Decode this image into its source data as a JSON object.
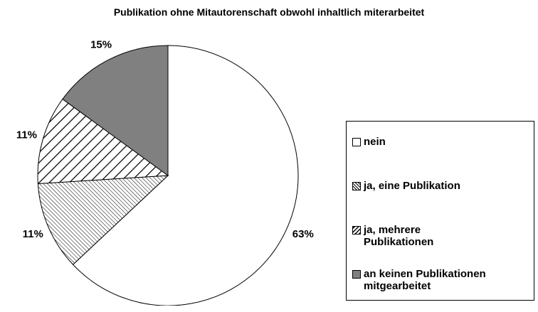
{
  "chart_data": {
    "type": "pie",
    "title": "Publikation ohne Mitautorenschaft obwohl inhaltlich miterarbeitet",
    "categories": [
      "nein",
      "ja, eine Publikation",
      "ja, mehrere Publikationen",
      "an keinen Publikationen mitgearbeitet"
    ],
    "values": [
      63,
      11,
      11,
      15
    ],
    "value_labels": [
      "63%",
      "11%",
      "11%",
      "15%"
    ],
    "colors": [
      "#ffffff",
      "#ffffff",
      "#ffffff",
      "#808080"
    ],
    "patterns": [
      "none",
      "fine-hatch",
      "stripes",
      "none"
    ],
    "legend": "right"
  }
}
